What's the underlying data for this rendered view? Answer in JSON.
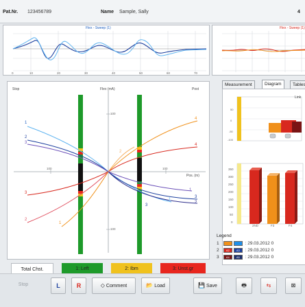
{
  "header": {
    "pat_label": "Pat.Nr.",
    "pat_value": "123456789",
    "name_label": "Name",
    "name_value": "Sample, Sally",
    "top_right": "4"
  },
  "sweep_left": {
    "title": "Flex - Sweep (1)"
  },
  "sweep_right": {
    "title": "Flex - Sweep (1)"
  },
  "diagram": {
    "top_left": "Stop",
    "top_center": "Flex (mA)",
    "top_right": "Post",
    "right_axis": "Pos. (m)",
    "tick_up": "100",
    "tick_down": "100",
    "tick_left": "100",
    "tick_right": "100",
    "curve_labels": [
      "1",
      "2",
      "3",
      "3",
      "2",
      "1",
      "4",
      "4",
      "3",
      "2",
      "1",
      "1",
      "2",
      "3"
    ]
  },
  "tabs": [
    "Measurement",
    "Diagram",
    "Tables"
  ],
  "mini_chart": {
    "legend_label": "Link"
  },
  "bar_chart": {
    "y_ticks": [
      "350",
      "300",
      "250",
      "200",
      "150",
      "100",
      "50",
      "0"
    ],
    "x_ticks": [
      "2ND",
      "F3",
      "F4"
    ]
  },
  "legend": {
    "title": "Legend",
    "rows": [
      {
        "num": "1",
        "label_a": "",
        "label_b": "",
        "date": ": 29.03.2012 0",
        "color_a": "#f0901a",
        "color_b": "#1e8ee8"
      },
      {
        "num": "2",
        "label_a": "A2",
        "label_b": "A3",
        "date": ": 29.03.2012 0",
        "color_a": "#d8281e",
        "color_b": "#1c3f9e"
      },
      {
        "num": "3",
        "label_a": "A4",
        "label_b": "A5",
        "date": ": 29.03.2012 0",
        "color_a": "#7a1414",
        "color_b": "#1c2f6e"
      }
    ]
  },
  "total_chst": {
    "label": "Total Chst.",
    "box1": "1: Left",
    "box2": "2: Ibm",
    "box3": "3: Unst.gr"
  },
  "toolbar": {
    "stop": "Stop",
    "l": "L",
    "r": "R",
    "comment": "Comment",
    "load": "Load",
    "save": "Save"
  },
  "colors": {
    "green": "#1e9a2a",
    "yellow": "#f0c21e",
    "red": "#e8261e",
    "accent_blue": "#1e8ee8"
  }
}
